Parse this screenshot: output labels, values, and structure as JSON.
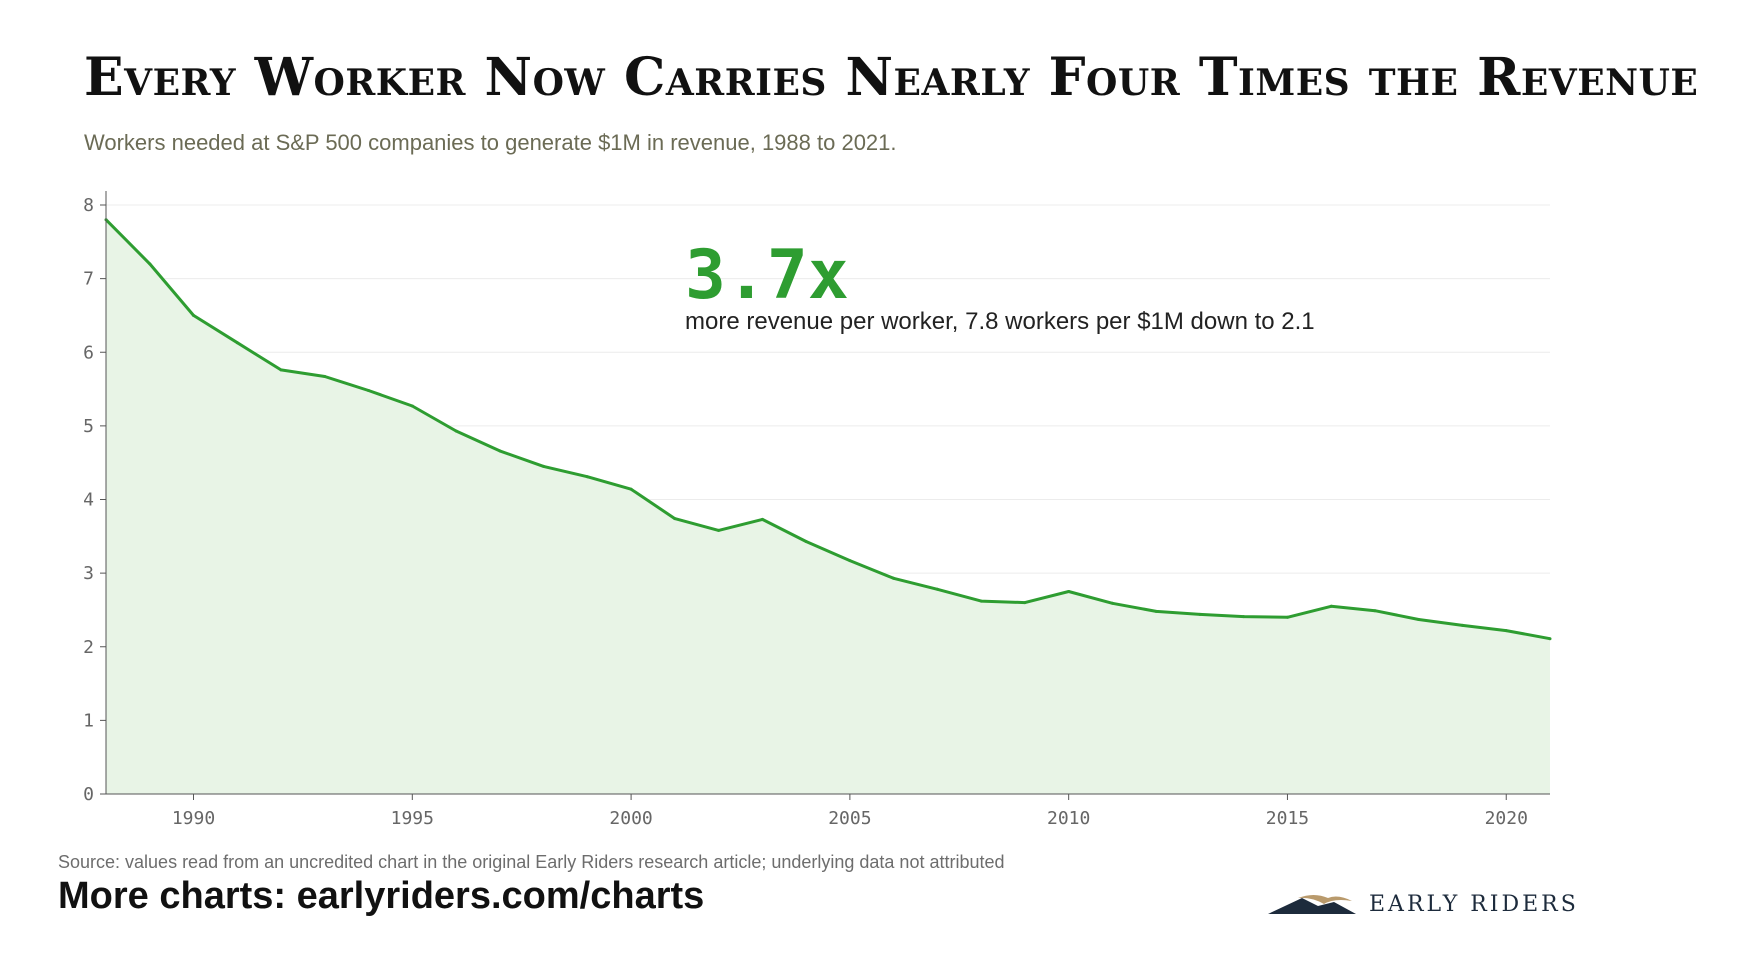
{
  "header": {
    "title": "Every Worker Now Carries Nearly Four Times the Revenue",
    "subtitle": "Workers needed at S&P 500 companies to generate $1M in revenue, 1988 to 2021."
  },
  "callout": {
    "value": "3.7x",
    "text": "more revenue per worker, 7.8 workers per $1M down to 2.1"
  },
  "footer": {
    "source": "Source: values read from an uncredited chart in the original Early Riders research article; underlying data not attributed",
    "more": "More charts: earlyriders.com/charts",
    "brand": "EARLY RIDERS"
  },
  "colors": {
    "line": "#2e9d31",
    "fill": "#e8f4e6",
    "accent": "#2e9d31",
    "brand_navy": "#1d2b3c",
    "brand_gold": "#b99a6c"
  },
  "chart_data": {
    "type": "area",
    "xlim": [
      1988,
      2021
    ],
    "ylim": [
      0,
      8
    ],
    "xticks": [
      1990,
      1995,
      2000,
      2005,
      2010,
      2015,
      2020
    ],
    "yticks": [
      0,
      1,
      2,
      3,
      4,
      5,
      6,
      7,
      8
    ],
    "grid": true,
    "legend": "none",
    "x": [
      1988,
      1989,
      1990,
      1991,
      1992,
      1993,
      1994,
      1995,
      1996,
      1997,
      1998,
      1999,
      2000,
      2001,
      2002,
      2003,
      2004,
      2005,
      2006,
      2007,
      2008,
      2009,
      2010,
      2011,
      2012,
      2013,
      2014,
      2015,
      2016,
      2017,
      2018,
      2019,
      2020,
      2021
    ],
    "values": [
      7.8,
      7.2,
      6.5,
      6.13,
      5.76,
      5.67,
      5.48,
      5.27,
      4.93,
      4.66,
      4.45,
      4.31,
      4.14,
      3.74,
      3.58,
      3.73,
      3.43,
      3.17,
      2.93,
      2.78,
      2.62,
      2.6,
      2.75,
      2.59,
      2.48,
      2.44,
      2.41,
      2.4,
      2.55,
      2.49,
      2.37,
      2.29,
      2.22,
      2.11
    ]
  }
}
